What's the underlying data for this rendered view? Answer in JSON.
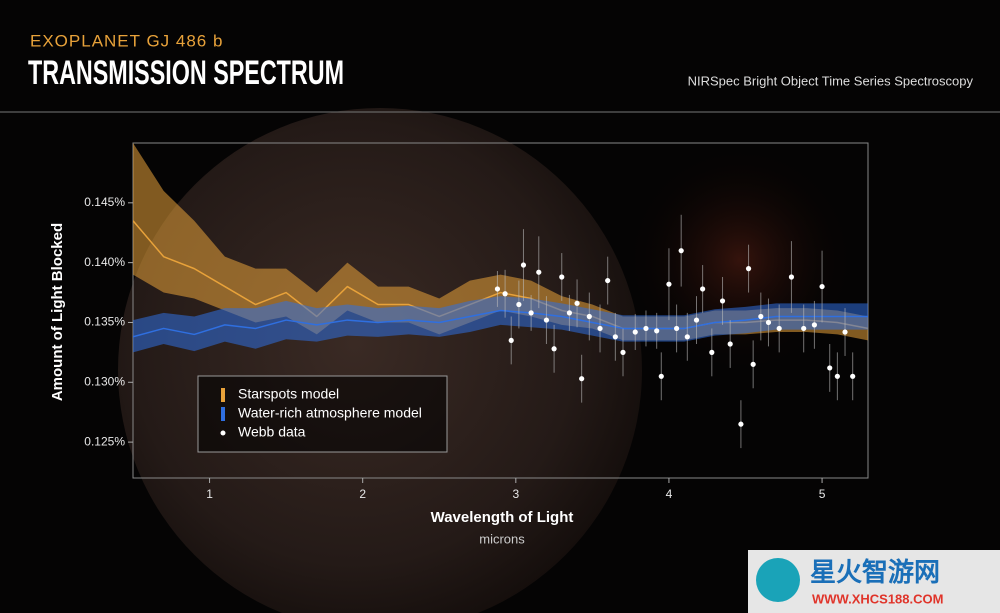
{
  "chart_data": {
    "type": "line",
    "supertitle": "EXOPLANET GJ 486 b",
    "title": "TRANSMISSION SPECTRUM",
    "subtitle": "NIRSpec Bright Object Time Series Spectroscopy",
    "x_label": "Wavelength of Light",
    "x_units": "microns",
    "y_label": "Amount of Light Blocked",
    "xlim": [
      0.5,
      5.3
    ],
    "xticks": [
      1,
      2,
      3,
      4,
      5
    ],
    "ylim": [
      0.122,
      0.15
    ],
    "yticks": [
      {
        "value": 0.125,
        "label": "0.125%"
      },
      {
        "value": 0.13,
        "label": "0.130%"
      },
      {
        "value": 0.135,
        "label": "0.135%"
      },
      {
        "value": 0.14,
        "label": "0.140%"
      },
      {
        "value": 0.145,
        "label": "0.145%"
      }
    ],
    "legend": "lower left",
    "x": [
      0.5,
      0.7,
      0.9,
      1.1,
      1.3,
      1.5,
      1.7,
      1.9,
      2.1,
      2.3,
      2.5,
      2.7,
      2.9,
      3.1,
      3.3,
      3.5,
      3.7,
      3.9,
      4.1,
      4.3,
      4.5,
      4.7,
      4.9,
      5.1,
      5.3
    ],
    "series": [
      {
        "name": "Starspots model",
        "type": "band",
        "color": "#e8a23a",
        "values": [
          0.1435,
          0.1405,
          0.1395,
          0.138,
          0.1365,
          0.1375,
          0.1355,
          0.138,
          0.1365,
          0.1365,
          0.1355,
          0.1365,
          0.1375,
          0.137,
          0.136,
          0.1355,
          0.1345,
          0.1345,
          0.1345,
          0.135,
          0.135,
          0.1352,
          0.1352,
          0.135,
          0.1345
        ],
        "upper": [
          0.15,
          0.146,
          0.1435,
          0.1405,
          0.1395,
          0.1395,
          0.1375,
          0.14,
          0.138,
          0.138,
          0.137,
          0.1385,
          0.139,
          0.1385,
          0.1372,
          0.1365,
          0.1355,
          0.1355,
          0.1355,
          0.136,
          0.136,
          0.1362,
          0.1362,
          0.136,
          0.1355
        ],
        "lower": [
          0.139,
          0.1375,
          0.137,
          0.136,
          0.135,
          0.1355,
          0.134,
          0.136,
          0.135,
          0.135,
          0.134,
          0.135,
          0.136,
          0.1355,
          0.1348,
          0.1345,
          0.1335,
          0.1335,
          0.1335,
          0.134,
          0.134,
          0.1342,
          0.1342,
          0.134,
          0.1335
        ]
      },
      {
        "name": "Water-rich atmosphere model",
        "type": "band",
        "color": "#2f6fe0",
        "values": [
          0.1338,
          0.1345,
          0.134,
          0.1348,
          0.1345,
          0.1352,
          0.1348,
          0.1352,
          0.135,
          0.1352,
          0.135,
          0.1355,
          0.136,
          0.1358,
          0.1355,
          0.135,
          0.1345,
          0.1345,
          0.1345,
          0.135,
          0.1352,
          0.1355,
          0.1355,
          0.1355,
          0.1355
        ],
        "upper": [
          0.1352,
          0.1358,
          0.1355,
          0.1362,
          0.1362,
          0.1368,
          0.1362,
          0.1365,
          0.1362,
          0.1364,
          0.1362,
          0.1368,
          0.1372,
          0.137,
          0.1366,
          0.1361,
          0.1356,
          0.1356,
          0.1356,
          0.1361,
          0.1363,
          0.1366,
          0.1366,
          0.1366,
          0.1366
        ],
        "lower": [
          0.1325,
          0.1332,
          0.1326,
          0.1334,
          0.1328,
          0.1336,
          0.1334,
          0.1339,
          0.1338,
          0.134,
          0.1338,
          0.1342,
          0.1348,
          0.1346,
          0.1344,
          0.1339,
          0.1334,
          0.1334,
          0.1334,
          0.1339,
          0.1341,
          0.1344,
          0.1344,
          0.1344,
          0.1344
        ]
      },
      {
        "name": "Webb data",
        "type": "scatter",
        "color": "#ffffff",
        "x": [
          2.88,
          2.93,
          2.97,
          3.02,
          3.05,
          3.1,
          3.15,
          3.2,
          3.25,
          3.3,
          3.35,
          3.4,
          3.43,
          3.48,
          3.55,
          3.6,
          3.65,
          3.7,
          3.78,
          3.85,
          3.92,
          3.95,
          4.0,
          4.05,
          4.08,
          4.12,
          4.18,
          4.22,
          4.28,
          4.35,
          4.4,
          4.47,
          4.52,
          4.55,
          4.6,
          4.65,
          4.72,
          4.8,
          4.88,
          4.95,
          5.0,
          5.05,
          5.1,
          5.15,
          5.2
        ],
        "values": [
          0.1378,
          0.1374,
          0.1335,
          0.1365,
          0.1398,
          0.1358,
          0.1392,
          0.1352,
          0.1328,
          0.1388,
          0.1358,
          0.1366,
          0.1303,
          0.1355,
          0.1345,
          0.1385,
          0.1338,
          0.1325,
          0.1342,
          0.1345,
          0.1343,
          0.1305,
          0.1382,
          0.1345,
          0.141,
          0.1338,
          0.1352,
          0.1378,
          0.1325,
          0.1368,
          0.1332,
          0.1265,
          0.1395,
          0.1315,
          0.1355,
          0.135,
          0.1345,
          0.1388,
          0.1345,
          0.1348,
          0.138,
          0.1312,
          0.1305,
          0.1342,
          0.1305
        ],
        "errors": [
          0.0015,
          0.002,
          0.002,
          0.002,
          0.003,
          0.0015,
          0.003,
          0.002,
          0.002,
          0.002,
          0.0015,
          0.002,
          0.002,
          0.002,
          0.002,
          0.002,
          0.002,
          0.002,
          0.0015,
          0.0015,
          0.0015,
          0.002,
          0.003,
          0.002,
          0.003,
          0.002,
          0.002,
          0.002,
          0.002,
          0.002,
          0.002,
          0.002,
          0.002,
          0.002,
          0.002,
          0.002,
          0.002,
          0.003,
          0.002,
          0.002,
          0.003,
          0.002,
          0.002,
          0.002,
          0.002
        ]
      }
    ]
  },
  "watermark": {
    "name": "星火智游网",
    "url": "WWW.XHCS188.COM"
  }
}
